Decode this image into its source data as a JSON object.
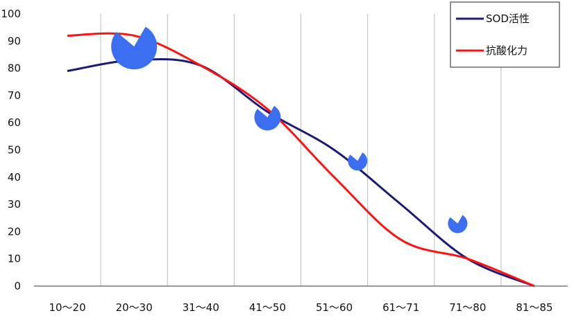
{
  "chart_data": {
    "type": "line",
    "categories": [
      "10～20",
      "20～30",
      "31～40",
      "41～50",
      "51～60",
      "61～71",
      "71～80",
      "81～85"
    ],
    "ylim": [
      0,
      100
    ],
    "yticks": [
      "0",
      "10",
      "20",
      "30",
      "40",
      "50",
      "60",
      "70",
      "80",
      "90",
      "100"
    ],
    "grid": "vertical",
    "legend_position": "top-right",
    "series": [
      {
        "name": "SOD活性",
        "color": "#1a1a7a",
        "values": [
          79,
          83,
          81,
          64,
          50,
          30,
          10,
          0
        ]
      },
      {
        "name": "抗酸化力",
        "color": "#ff1111",
        "values": [
          92,
          92,
          81,
          65,
          40,
          17,
          10,
          0
        ]
      }
    ],
    "decorations": [
      {
        "name": "pacman-icon",
        "color": "#3c6ef2",
        "category_index": 1.0,
        "value": 88,
        "size": "large"
      },
      {
        "name": "pacman-icon",
        "color": "#3c6ef2",
        "category_index": 3.0,
        "value": 62,
        "size": "medium"
      },
      {
        "name": "pacman-icon",
        "color": "#3c6ef2",
        "category_index": 4.35,
        "value": 46,
        "size": "small"
      },
      {
        "name": "pacman-icon",
        "color": "#3c6ef2",
        "category_index": 5.85,
        "value": 23,
        "size": "small"
      }
    ]
  }
}
